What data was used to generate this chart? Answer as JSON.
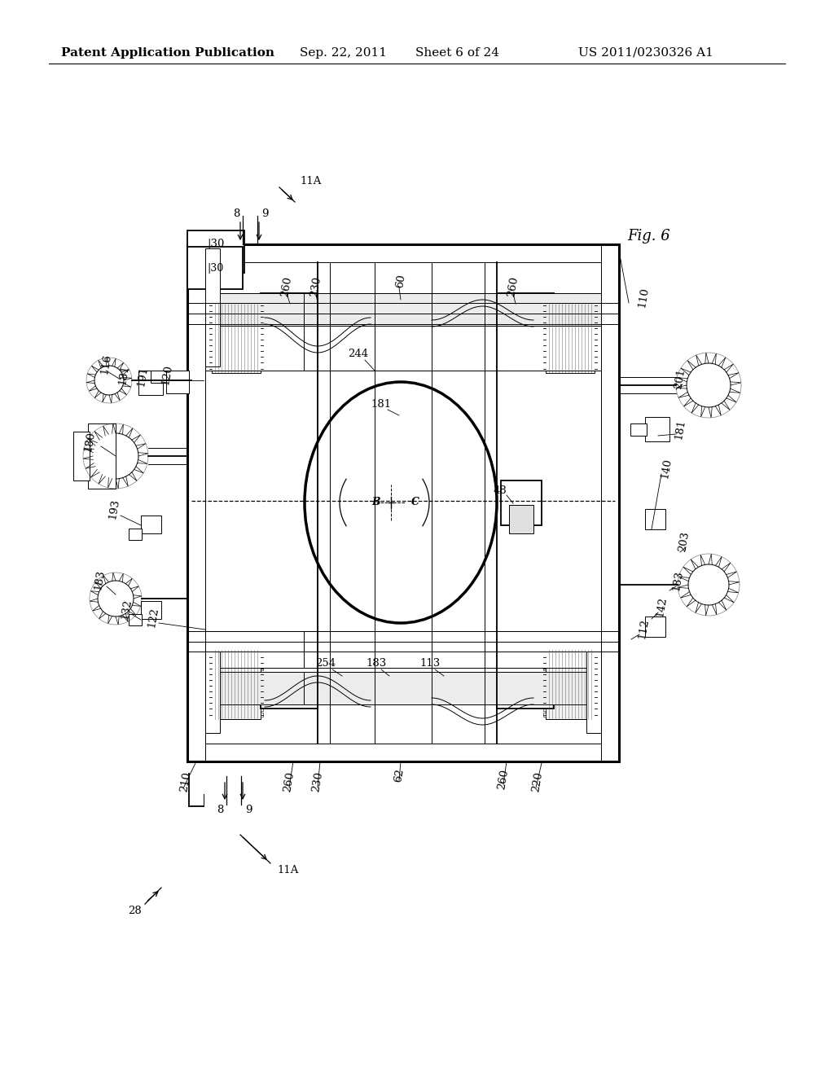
{
  "bg_color": "#ffffff",
  "header_text": "Patent Application Publication",
  "header_date": "Sep. 22, 2011",
  "header_sheet": "Sheet 6 of 24",
  "header_patent": "US 2011/0230326 A1",
  "fig_label": "Fig. 6",
  "title_fontsize": 11,
  "label_fontsize": 9.5,
  "small_fontsize": 8.5,
  "line_color": "#000000",
  "gray_fill": "#d0d0d0",
  "light_gray": "#e8e8e8"
}
